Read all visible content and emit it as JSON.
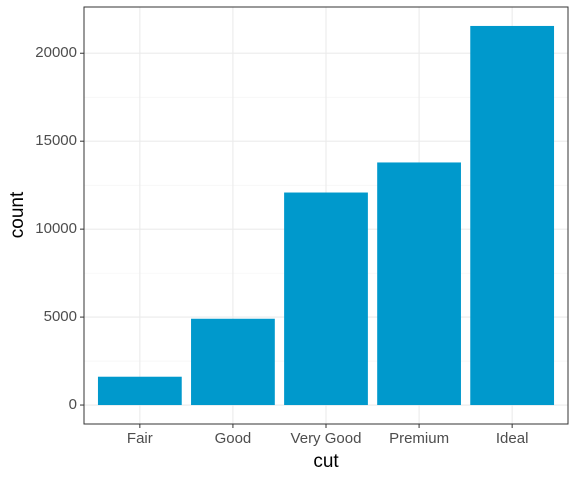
{
  "chart_data": {
    "type": "bar",
    "xlabel": "cut",
    "ylabel": "count",
    "categories": [
      "Fair",
      "Good",
      "Very Good",
      "Premium",
      "Ideal"
    ],
    "values": [
      1610,
      4906,
      12082,
      13791,
      21551
    ],
    "color": "#0099cc",
    "ylim": [
      -1077.55,
      22628.55
    ],
    "yticks": [
      0,
      5000,
      10000,
      15000,
      20000
    ],
    "minor_yticks": [
      2500,
      7500,
      12500,
      17500
    ],
    "grid": true
  }
}
